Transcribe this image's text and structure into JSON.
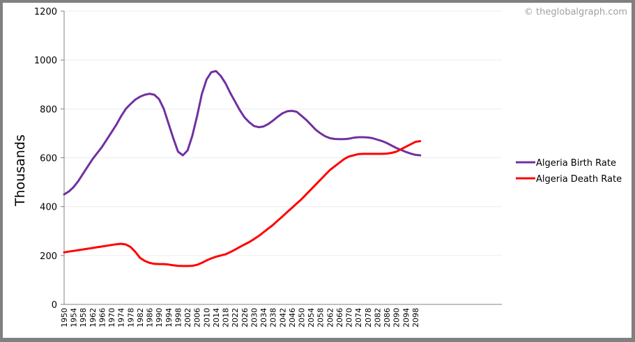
{
  "watermark": "© theglobalgraph.com",
  "chart_data": {
    "type": "line",
    "title": "",
    "xlabel": "",
    "ylabel": "Thousands",
    "ylim": [
      0,
      1200
    ],
    "yticks": [
      0,
      200,
      400,
      600,
      800,
      1000,
      1200
    ],
    "grid": true,
    "legend_position": "right",
    "xtick_labels": [
      "1950",
      "1954",
      "1958",
      "1962",
      "1966",
      "1970",
      "1974",
      "1978",
      "1982",
      "1986",
      "1990",
      "1994",
      "1998",
      "2002",
      "2006",
      "2010",
      "2014",
      "2018",
      "2022",
      "2026",
      "2030",
      "2034",
      "2038",
      "2042",
      "2046",
      "2050",
      "2054",
      "2058",
      "2062",
      "2066",
      "2070",
      "2074",
      "2078",
      "2082",
      "2086",
      "2090",
      "2094",
      "2098"
    ],
    "x": [
      1950,
      1952,
      1954,
      1956,
      1958,
      1960,
      1962,
      1964,
      1966,
      1968,
      1970,
      1972,
      1974,
      1976,
      1978,
      1980,
      1982,
      1984,
      1986,
      1988,
      1990,
      1992,
      1994,
      1996,
      1998,
      2000,
      2002,
      2004,
      2006,
      2008,
      2010,
      2012,
      2014,
      2016,
      2018,
      2020,
      2022,
      2024,
      2026,
      2028,
      2030,
      2032,
      2034,
      2036,
      2038,
      2040,
      2042,
      2044,
      2046,
      2048,
      2050,
      2052,
      2054,
      2056,
      2058,
      2060,
      2062,
      2064,
      2066,
      2068,
      2070,
      2072,
      2074,
      2076,
      2078,
      2080,
      2082,
      2084,
      2086,
      2088,
      2090,
      2092,
      2094,
      2096,
      2098,
      2100
    ],
    "series": [
      {
        "name": "Algeria Birth Rate",
        "color": "#7030a0",
        "values": [
          450,
          462,
          480,
          505,
          535,
          565,
          595,
          620,
          645,
          675,
          705,
          735,
          770,
          800,
          820,
          838,
          850,
          858,
          862,
          858,
          840,
          800,
          740,
          680,
          625,
          610,
          630,
          690,
          770,
          860,
          920,
          950,
          955,
          935,
          905,
          865,
          830,
          795,
          765,
          745,
          730,
          725,
          728,
          738,
          752,
          768,
          782,
          790,
          792,
          788,
          772,
          755,
          735,
          715,
          700,
          688,
          680,
          677,
          676,
          676,
          678,
          682,
          684,
          684,
          683,
          680,
          674,
          668,
          660,
          650,
          640,
          632,
          624,
          617,
          612,
          610
        ]
      },
      {
        "name": "Algeria Death Rate",
        "color": "#ff0000",
        "values": [
          213,
          216,
          219,
          222,
          225,
          228,
          231,
          234,
          237,
          240,
          243,
          246,
          248,
          245,
          235,
          215,
          190,
          178,
          170,
          166,
          165,
          165,
          163,
          160,
          158,
          157,
          157,
          158,
          162,
          170,
          180,
          188,
          195,
          200,
          205,
          214,
          224,
          235,
          245,
          255,
          267,
          280,
          295,
          310,
          325,
          343,
          360,
          378,
          395,
          413,
          430,
          450,
          470,
          490,
          510,
          530,
          550,
          565,
          580,
          595,
          605,
          610,
          615,
          616,
          616,
          616,
          616,
          616,
          617,
          620,
          625,
          635,
          645,
          655,
          665,
          668
        ]
      }
    ]
  }
}
